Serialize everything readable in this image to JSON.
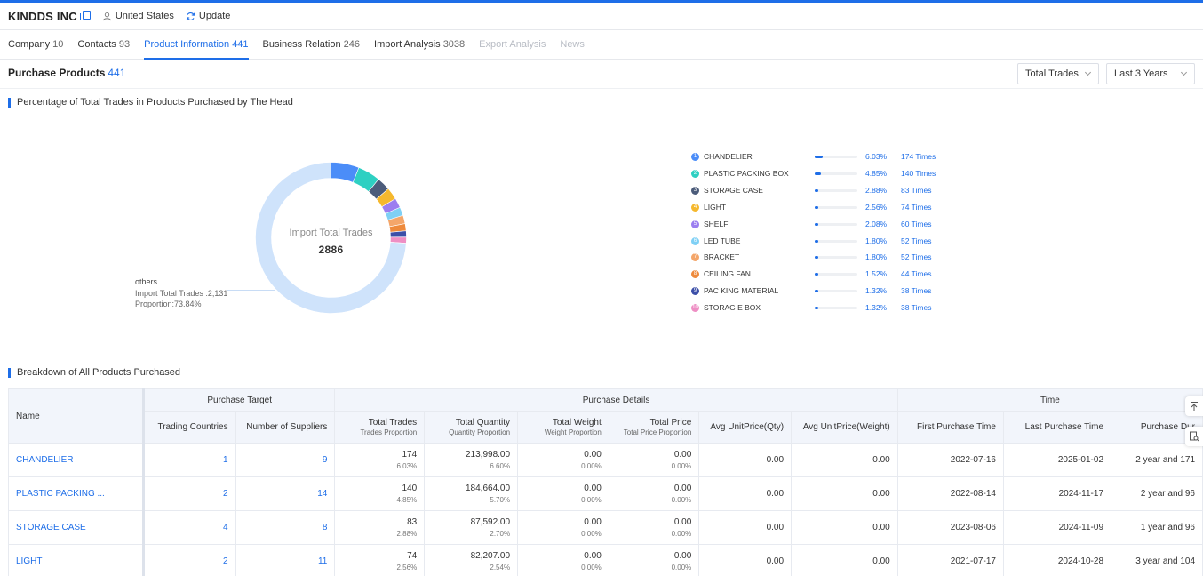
{
  "header": {
    "company": "KINDDS INC",
    "country": "United States",
    "update_label": "Update"
  },
  "tabs": [
    {
      "label": "Company",
      "count": "10"
    },
    {
      "label": "Contacts",
      "count": "93"
    },
    {
      "label": "Product Information",
      "count": "441"
    },
    {
      "label": "Business Relation",
      "count": "246"
    },
    {
      "label": "Import Analysis",
      "count": "3038"
    },
    {
      "label": "Export Analysis",
      "count": ""
    },
    {
      "label": "News",
      "count": ""
    }
  ],
  "purchase_products": {
    "title": "Purchase Products",
    "count": "441"
  },
  "filters": {
    "metric": "Total Trades",
    "period": "Last 3 Years"
  },
  "section1_title": "Percentage of Total Trades in Products Purchased by The Head",
  "section2_title": "Breakdown of All Products Purchased",
  "donut": {
    "center_label": "Import Total Trades",
    "center_value": "2886",
    "others_label": "others",
    "others_trades": "Import Total Trades :2,131",
    "others_proportion": "Proportion:73.84%"
  },
  "chart_data": {
    "type": "pie",
    "title": "",
    "total": 2886,
    "slices": [
      {
        "name": "CHANDELIER",
        "value": 174,
        "pct": 6.03,
        "color": "#4b8df8"
      },
      {
        "name": "PLASTIC PACKING BOX",
        "value": 140,
        "pct": 4.85,
        "color": "#2ed0c2"
      },
      {
        "name": "STORAGE CASE",
        "value": 83,
        "pct": 2.88,
        "color": "#4c5c7a"
      },
      {
        "name": "LIGHT",
        "value": 74,
        "pct": 2.56,
        "color": "#f5b82e"
      },
      {
        "name": "SHELF",
        "value": 60,
        "pct": 2.08,
        "color": "#9b7ef0"
      },
      {
        "name": "LED TUBE",
        "value": 52,
        "pct": 1.8,
        "color": "#7fd0f5"
      },
      {
        "name": "BRACKET",
        "value": 52,
        "pct": 1.8,
        "color": "#f4a66a"
      },
      {
        "name": "CEILING FAN",
        "value": 44,
        "pct": 1.52,
        "color": "#ee8a3c"
      },
      {
        "name": "PAC KING MATERIAL",
        "value": 38,
        "pct": 1.32,
        "color": "#3c4fa8"
      },
      {
        "name": "STORAG E BOX",
        "value": 38,
        "pct": 1.32,
        "color": "#ee8fc4"
      },
      {
        "name": "others",
        "value": 2131,
        "pct": 73.84,
        "color": "#cfe3fb"
      }
    ]
  },
  "legend": [
    {
      "idx": "1",
      "name": "CHANDELIER",
      "pct": "6.03%",
      "times": "174  Times"
    },
    {
      "idx": "2",
      "name": "PLASTIC PACKING BOX",
      "pct": "4.85%",
      "times": "140  Times"
    },
    {
      "idx": "3",
      "name": "STORAGE CASE",
      "pct": "2.88%",
      "times": "83  Times"
    },
    {
      "idx": "4",
      "name": "LIGHT",
      "pct": "2.56%",
      "times": "74  Times"
    },
    {
      "idx": "5",
      "name": "SHELF",
      "pct": "2.08%",
      "times": "60  Times"
    },
    {
      "idx": "6",
      "name": "LED TUBE",
      "pct": "1.80%",
      "times": "52  Times"
    },
    {
      "idx": "7",
      "name": "BRACKET",
      "pct": "1.80%",
      "times": "52  Times"
    },
    {
      "idx": "8",
      "name": "CEILING FAN",
      "pct": "1.52%",
      "times": "44  Times"
    },
    {
      "idx": "9",
      "name": "PAC KING MATERIAL",
      "pct": "1.32%",
      "times": "38  Times"
    },
    {
      "idx": "10",
      "name": "STORAG E BOX",
      "pct": "1.32%",
      "times": "38  Times"
    }
  ],
  "table": {
    "groups": {
      "name": "Name",
      "target": "Purchase Target",
      "details": "Purchase Details",
      "time": "Time"
    },
    "columns": {
      "countries": "Trading Countries",
      "suppliers": "Number of Suppliers",
      "trades": "Total Trades",
      "trades_sub": "Trades Proportion",
      "qty": "Total Quantity",
      "qty_sub": "Quantity Proportion",
      "weight": "Total Weight",
      "weight_sub": "Weight Proportion",
      "price": "Total Price",
      "price_sub": "Total Price Proportion",
      "unit_qty": "Avg UnitPrice(Qty)",
      "unit_weight": "Avg UnitPrice(Weight)",
      "first": "First Purchase Time",
      "last": "Last Purchase Time",
      "duration": "Purchase Dur"
    },
    "rows": [
      {
        "name": "CHANDELIER",
        "countries": "1",
        "suppliers": "9",
        "trades": "174",
        "trades_pct": "6.03%",
        "qty": "213,998.00",
        "qty_pct": "6.60%",
        "weight": "0.00",
        "weight_pct": "0.00%",
        "price": "0.00",
        "price_pct": "0.00%",
        "unit_qty": "0.00",
        "unit_weight": "0.00",
        "first": "2022-07-16",
        "last": "2025-01-02",
        "duration": "2 year and 171"
      },
      {
        "name": "PLASTIC PACKING ...",
        "countries": "2",
        "suppliers": "14",
        "trades": "140",
        "trades_pct": "4.85%",
        "qty": "184,664.00",
        "qty_pct": "5.70%",
        "weight": "0.00",
        "weight_pct": "0.00%",
        "price": "0.00",
        "price_pct": "0.00%",
        "unit_qty": "0.00",
        "unit_weight": "0.00",
        "first": "2022-08-14",
        "last": "2024-11-17",
        "duration": "2 year and 96"
      },
      {
        "name": "STORAGE CASE",
        "countries": "4",
        "suppliers": "8",
        "trades": "83",
        "trades_pct": "2.88%",
        "qty": "87,592.00",
        "qty_pct": "2.70%",
        "weight": "0.00",
        "weight_pct": "0.00%",
        "price": "0.00",
        "price_pct": "0.00%",
        "unit_qty": "0.00",
        "unit_weight": "0.00",
        "first": "2023-08-06",
        "last": "2024-11-09",
        "duration": "1 year and 96"
      },
      {
        "name": "LIGHT",
        "countries": "2",
        "suppliers": "11",
        "trades": "74",
        "trades_pct": "2.56%",
        "qty": "82,207.00",
        "qty_pct": "2.54%",
        "weight": "0.00",
        "weight_pct": "0.00%",
        "price": "0.00",
        "price_pct": "0.00%",
        "unit_qty": "0.00",
        "unit_weight": "0.00",
        "first": "2021-07-17",
        "last": "2024-10-28",
        "duration": "3 year and 104"
      }
    ]
  },
  "colors": {
    "accent": "#1e6ee8"
  }
}
